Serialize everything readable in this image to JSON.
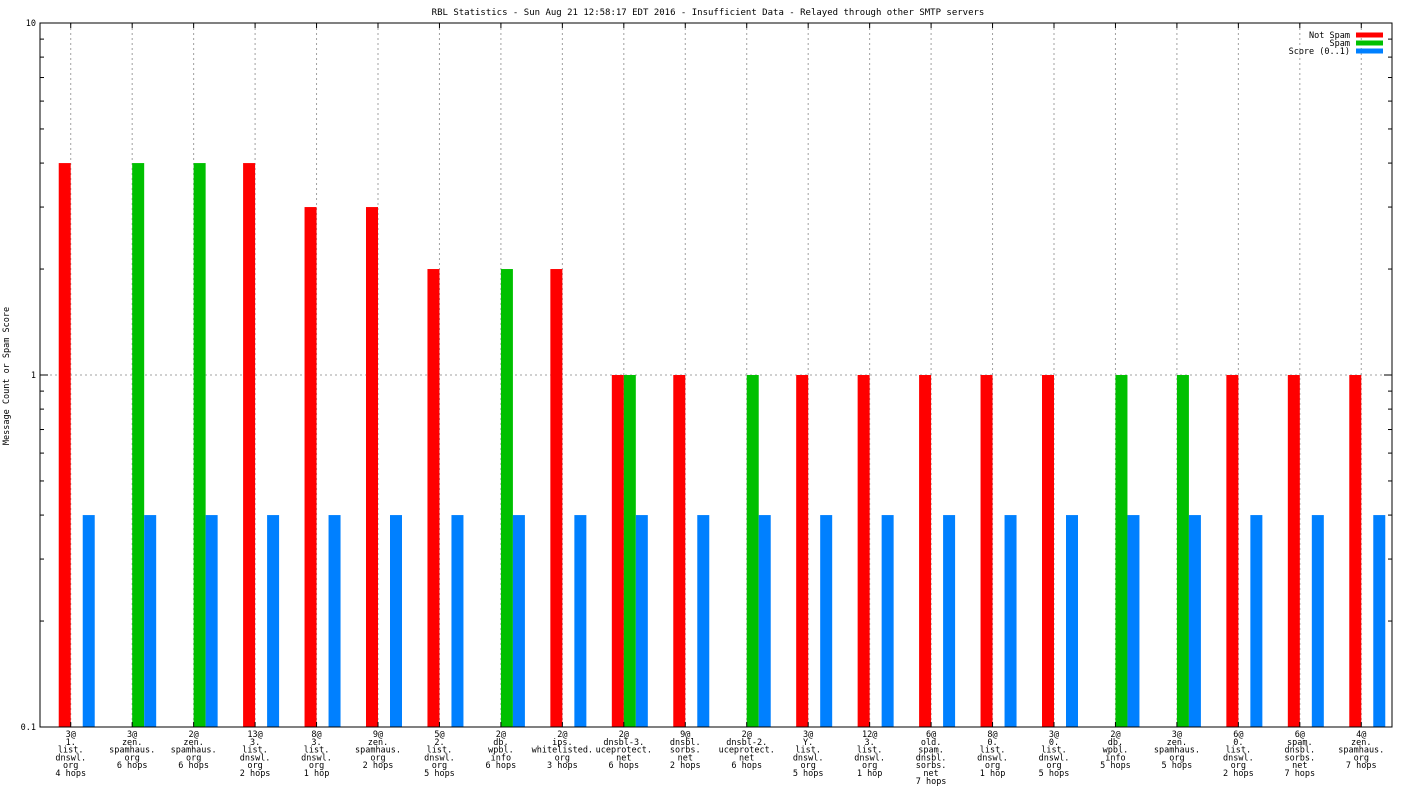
{
  "chart_data": {
    "type": "bar",
    "title": "RBL Statistics - Sun Aug 21 12:58:17 EDT 2016 - Insufficient Data - Relayed through other SMTP servers",
    "xlabel": "",
    "ylabel": "Message Count or Spam Score",
    "yscale": "log",
    "ylim": [
      0.1,
      10
    ],
    "yticks": [
      "0.1",
      "1",
      "10"
    ],
    "grid": true,
    "legend_position": "top-right",
    "categories": [
      [
        "3@",
        "1.",
        "list.",
        "dnswl.",
        "org",
        "4 hops"
      ],
      [
        "3@",
        "zen.",
        "spamhaus.",
        "org",
        "6 hops"
      ],
      [
        "2@",
        "zen.",
        "spamhaus.",
        "org",
        "6 hops"
      ],
      [
        "13@",
        "3.",
        "list.",
        "dnswl.",
        "org",
        "2 hops"
      ],
      [
        "8@",
        "3.",
        "list.",
        "dnswl.",
        "org",
        "1 hop"
      ],
      [
        "9@",
        "zen.",
        "spamhaus.",
        "org",
        "2 hops"
      ],
      [
        "5@",
        "2.",
        "list.",
        "dnswl.",
        "org",
        "5 hops"
      ],
      [
        "2@",
        "db.",
        "wpbl.",
        "info",
        "6 hops"
      ],
      [
        "2@",
        "ips.",
        "whitelisted.",
        "org",
        "3 hops"
      ],
      [
        "2@",
        "dnsbl-3.",
        "uceprotect.",
        "net",
        "6 hops"
      ],
      [
        "9@",
        "dnsbl.",
        "sorbs.",
        "net",
        "2 hops"
      ],
      [
        "2@",
        "dnsbl-2.",
        "uceprotect.",
        "net",
        "6 hops"
      ],
      [
        "3@",
        "Y.",
        "list.",
        "dnswl.",
        "org",
        "5 hops"
      ],
      [
        "12@",
        "3.",
        "list.",
        "dnswl.",
        "org",
        "1 hop"
      ],
      [
        "6@",
        "old.",
        "spam.",
        "dnsbl.",
        "sorbs.",
        "net",
        "7 hops"
      ],
      [
        "8@",
        "0.",
        "list.",
        "dnswl.",
        "org",
        "1 hop"
      ],
      [
        "3@",
        "0.",
        "list.",
        "dnswl.",
        "org",
        "5 hops"
      ],
      [
        "2@",
        "db.",
        "wpbl.",
        "info",
        "5 hops"
      ],
      [
        "3@",
        "zen.",
        "spamhaus.",
        "org",
        "5 hops"
      ],
      [
        "6@",
        "0.",
        "list.",
        "dnswl.",
        "org",
        "2 hops"
      ],
      [
        "6@",
        "spam.",
        "dnsbl.",
        "sorbs.",
        "net",
        "7 hops"
      ],
      [
        "4@",
        "zen.",
        "spamhaus.",
        "org",
        "7 hops"
      ]
    ],
    "series": [
      {
        "name": "Not Spam",
        "color": "#ff0000",
        "values": [
          4,
          0,
          0,
          4,
          3,
          3,
          2,
          0,
          2,
          1,
          1,
          0,
          1,
          1,
          1,
          1,
          1,
          0,
          0,
          1,
          1,
          1
        ]
      },
      {
        "name": "Spam",
        "color": "#00c000",
        "values": [
          0,
          4,
          4,
          0,
          0,
          0,
          0,
          2,
          0,
          1,
          0,
          1,
          0,
          0,
          0,
          0,
          0,
          1,
          1,
          0,
          0,
          0
        ]
      },
      {
        "name": "Score (0..1)",
        "color": "#0080ff",
        "values": [
          0.4,
          0.4,
          0.4,
          0.4,
          0.4,
          0.4,
          0.4,
          0.4,
          0.4,
          0.4,
          0.4,
          0.4,
          0.4,
          0.4,
          0.4,
          0.4,
          0.4,
          0.4,
          0.4,
          0.4,
          0.4,
          0.4
        ]
      }
    ]
  }
}
